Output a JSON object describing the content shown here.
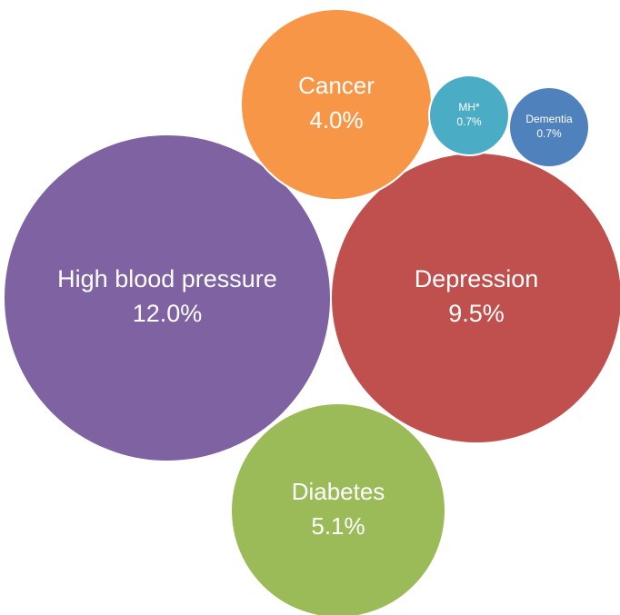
{
  "chart_data": {
    "type": "bubble",
    "title": "",
    "series": [
      {
        "name": "High blood pressure",
        "value": 12.0,
        "value_label": "12.0%",
        "color": "#7F62A1"
      },
      {
        "name": "Depression",
        "value": 9.5,
        "value_label": "9.5%",
        "color": "#C0504D"
      },
      {
        "name": "Diabetes",
        "value": 5.1,
        "value_label": "5.1%",
        "color": "#9BBB59"
      },
      {
        "name": "Cancer",
        "value": 4.0,
        "value_label": "4.0%",
        "color": "#F79646"
      },
      {
        "name": "MH*",
        "value": 0.7,
        "value_label": "0.7%",
        "color": "#4BACC6"
      },
      {
        "name": "Dementia",
        "value": 0.7,
        "value_label": "0.7%",
        "color": "#4F81BD"
      }
    ]
  }
}
